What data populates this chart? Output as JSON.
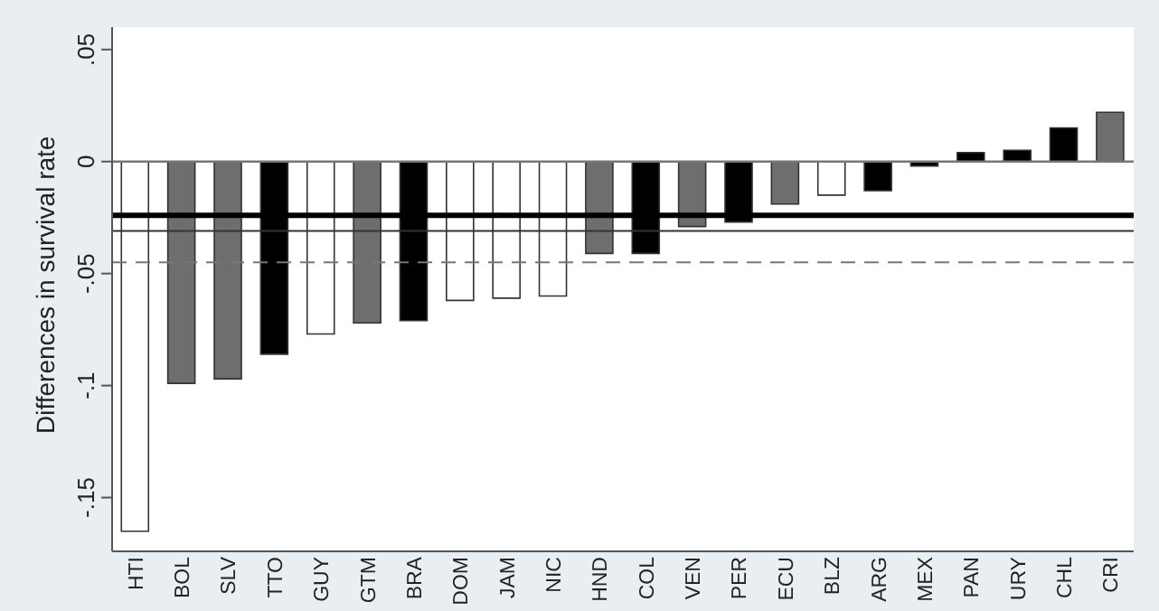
{
  "chart_data": {
    "type": "bar",
    "ylabel": "Differences in survival rate",
    "categories": [
      "HTI",
      "BOL",
      "SLV",
      "TTO",
      "GUY",
      "GTM",
      "BRA",
      "DOM",
      "JAM",
      "NIC",
      "HND",
      "COL",
      "VEN",
      "PER",
      "ECU",
      "BLZ",
      "ARG",
      "MEX",
      "PAN",
      "URY",
      "CHL",
      "CRI"
    ],
    "values": [
      -0.165,
      -0.099,
      -0.097,
      -0.086,
      -0.077,
      -0.072,
      -0.071,
      -0.062,
      -0.061,
      -0.06,
      -0.041,
      -0.041,
      -0.029,
      -0.027,
      -0.019,
      -0.015,
      -0.013,
      -0.002,
      0.004,
      0.005,
      0.015,
      0.022
    ],
    "colors": [
      "#ffffff",
      "#6e6e6e",
      "#6e6e6e",
      "#000000",
      "#ffffff",
      "#6e6e6e",
      "#000000",
      "#ffffff",
      "#ffffff",
      "#ffffff",
      "#6e6e6e",
      "#000000",
      "#6e6e6e",
      "#000000",
      "#6e6e6e",
      "#ffffff",
      "#000000",
      "#000000",
      "#000000",
      "#000000",
      "#000000",
      "#6e6e6e"
    ],
    "ylim": [
      -0.174,
      0.06
    ],
    "yticks": [
      {
        "value": -0.15,
        "label": "-.15"
      },
      {
        "value": -0.1,
        "label": "-.1"
      },
      {
        "value": -0.05,
        "label": "-.05"
      },
      0,
      {
        "value": 0.05,
        "label": ".05"
      }
    ],
    "grid": "y",
    "ref_lines": [
      {
        "axis": "y",
        "value": -0.024,
        "color": "#000000",
        "line_style": "solid"
      },
      {
        "axis": "y",
        "value": -0.031,
        "color": "#333333",
        "line_style": "solid"
      },
      {
        "axis": "y",
        "value": -0.045,
        "color": "#777777",
        "line_style": "dashed"
      }
    ]
  }
}
